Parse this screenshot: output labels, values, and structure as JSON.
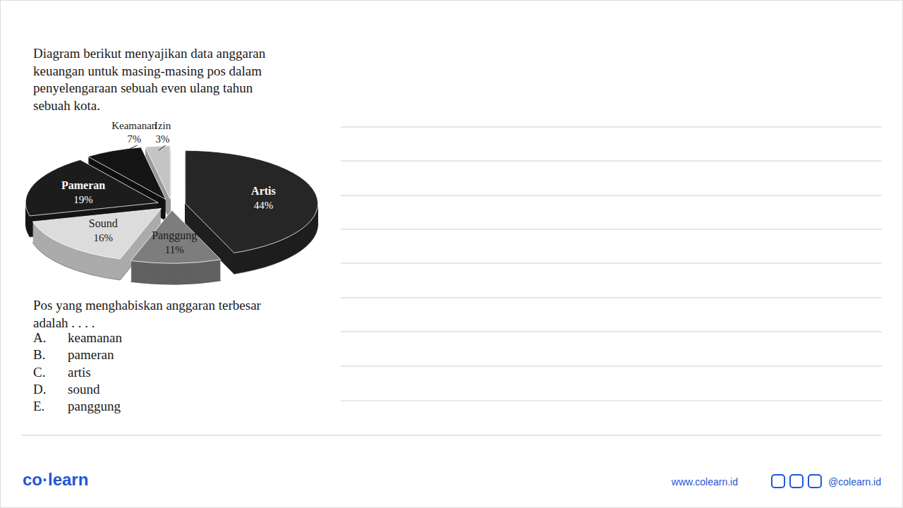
{
  "question": {
    "stem": [
      "Diagram berikut menyajikan data anggaran",
      "keuangan untuk masing-masing pos dalam",
      "penyelengaraan sebuah even ulang tahun",
      "sebuah kota."
    ],
    "prompt": [
      "Pos yang menghabiskan anggaran terbesar",
      "adalah . . . ."
    ],
    "options": [
      {
        "letter": "A.",
        "text": "keamanan"
      },
      {
        "letter": "B.",
        "text": "pameran"
      },
      {
        "letter": "C.",
        "text": "artis"
      },
      {
        "letter": "D.",
        "text": "sound"
      },
      {
        "letter": "E.",
        "text": "panggung"
      }
    ]
  },
  "chart_data": {
    "type": "pie",
    "categories": [
      "Artis",
      "Panggung",
      "Sound",
      "Pameran",
      "Keamanan",
      "Izin"
    ],
    "values": [
      44,
      11,
      16,
      19,
      7,
      3
    ],
    "value_labels": [
      "44%",
      "11%",
      "16%",
      "19%",
      "7%",
      "3%"
    ],
    "colors": [
      "#262626",
      "#7d7d7d",
      "#dcdcdc",
      "#1c1c1c",
      "#141414",
      "#c4c4c4"
    ],
    "data_labels": true
  },
  "footer": {
    "brand": "co·learn",
    "website": "www.colearn.id",
    "social": "@colearn.id"
  }
}
